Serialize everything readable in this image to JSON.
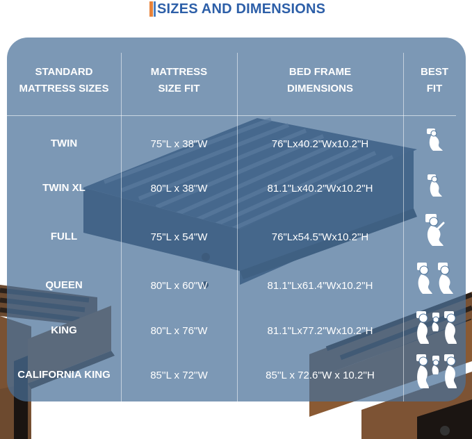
{
  "title": "SIZES AND DIMENSIONS",
  "headers": {
    "size": [
      "STANDARD",
      "MATTRESS SIZES"
    ],
    "mattress": [
      "MATTRESS",
      "SIZE FIT"
    ],
    "frame": [
      "BED FRAME",
      "DIMENSIONS"
    ],
    "fit": [
      "BEST",
      "FIT"
    ]
  },
  "rows": [
    {
      "name": "TWIN",
      "mattress": "75\"L x 38\"W",
      "frame": "76\"Lx40.2\"Wx10.2\"H",
      "fit_icon": "single-sleeper-icon"
    },
    {
      "name": "TWIN XL",
      "mattress": "80\"L x 38\"W",
      "frame": "81.1\"Lx40.2\"Wx10.2\"H",
      "fit_icon": "single-sleeper-icon"
    },
    {
      "name": "FULL",
      "mattress": "75\"L x 54\"W",
      "frame": "76\"Lx54.5\"Wx10.2\"H",
      "fit_icon": "single-sleeper-wide-icon"
    },
    {
      "name": "QUEEN",
      "mattress": "80\"L x 60\"W",
      "frame": "81.1\"Lx61.4\"Wx10.2\"H",
      "fit_icon": "two-sleepers-icon"
    },
    {
      "name": "KING",
      "mattress": "80\"L x 76\"W",
      "frame": "81.1\"Lx77.2\"Wx10.2\"H",
      "fit_icon": "family-sleepers-icon"
    },
    {
      "name": "CALIFORNIA KING",
      "mattress": "85''L x 72''W",
      "frame": "85''L x 72.6''W x 10.2''H",
      "fit_icon": "family-sleepers-icon"
    }
  ],
  "colors": {
    "title": "#2d5fa8",
    "title_accent_orange": "#e8833a",
    "title_accent_blue": "#4a7fc1",
    "panel": "#497098",
    "text": "#ffffff",
    "wood": "#8a5a33"
  }
}
